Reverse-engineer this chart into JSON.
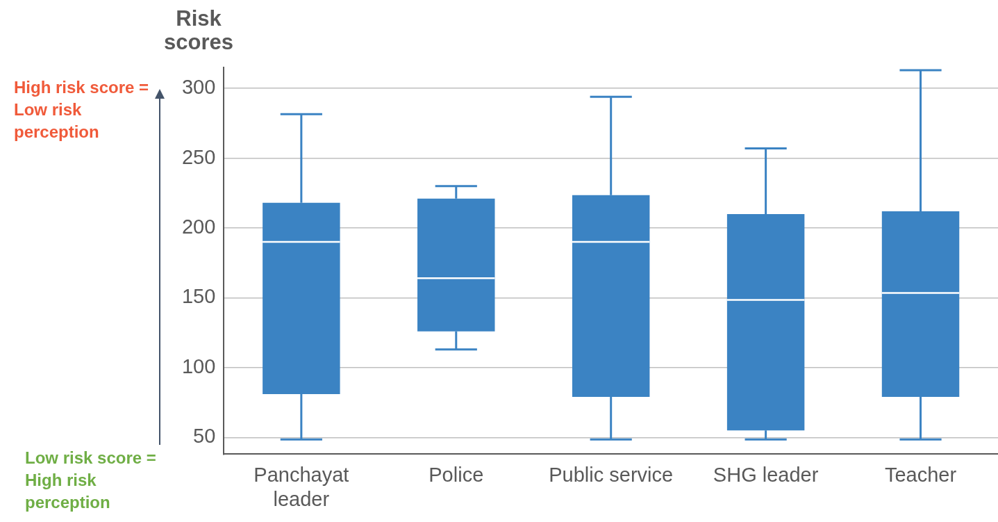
{
  "chart_data": {
    "type": "box",
    "ylabel": "Risk scores",
    "categories": [
      "Panchayat leader",
      "Police",
      "Public service",
      "SHG leader",
      "Teacher"
    ],
    "color": "#3b83c3",
    "boxes": [
      {
        "low": 48.5,
        "q1": 81,
        "median": 190,
        "q3": 218,
        "high": 281.5
      },
      {
        "low": 113,
        "q1": 126,
        "median": 164,
        "q3": 221,
        "high": 230
      },
      {
        "low": 48.5,
        "q1": 79,
        "median": 190,
        "q3": 223.5,
        "high": 294
      },
      {
        "low": 48.5,
        "q1": 55,
        "median": 148.5,
        "q3": 210,
        "high": 257
      },
      {
        "low": 48.5,
        "q1": 79,
        "median": 153.5,
        "q3": 212,
        "high": 313
      }
    ],
    "ylim": [
      38,
      315
    ],
    "yticks": [
      50,
      100,
      150,
      200,
      250,
      300
    ],
    "grid": "y",
    "legend": false,
    "annotations": [
      "High risk score = Low  risk perception",
      "Low risk score = High risk perception"
    ]
  }
}
